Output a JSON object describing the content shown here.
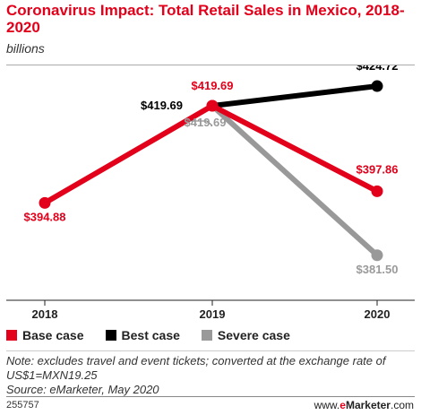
{
  "header": {
    "title": "Coronavirus Impact: Total Retail Sales in Mexico, 2018-2020",
    "subtitle": "billions"
  },
  "chart_data": {
    "type": "line",
    "title": "Coronavirus Impact: Total Retail Sales in Mexico, 2018-2020",
    "subtitle": "billions",
    "xlabel": "",
    "ylabel": "",
    "categories": [
      "2018",
      "2019",
      "2020"
    ],
    "ylim": [
      370,
      430
    ],
    "grid": false,
    "legend_position": "bottom-left",
    "series": [
      {
        "name": "Base case",
        "color": "#e2001a",
        "values": [
          394.88,
          419.69,
          397.86
        ],
        "labels": [
          "$394.88",
          "$419.69",
          "$397.86"
        ]
      },
      {
        "name": "Best case",
        "color": "#000000",
        "values": [
          null,
          419.69,
          424.72
        ],
        "labels": [
          "",
          "$419.69",
          "$424.72"
        ]
      },
      {
        "name": "Severe case",
        "color": "#999999",
        "values": [
          null,
          419.69,
          381.5
        ],
        "labels": [
          "",
          "$419.69",
          "$381.50"
        ]
      }
    ]
  },
  "footer": {
    "note": "Note: excludes travel and event tickets; converted at the exchange rate of US$1=MXN19.25",
    "source": "Source: eMarketer, May 2020",
    "chart_id": "255757",
    "brand_prefix": "www.",
    "brand_mark": "e",
    "brand_rest": "Marketer",
    "brand_suffix": ".com"
  }
}
